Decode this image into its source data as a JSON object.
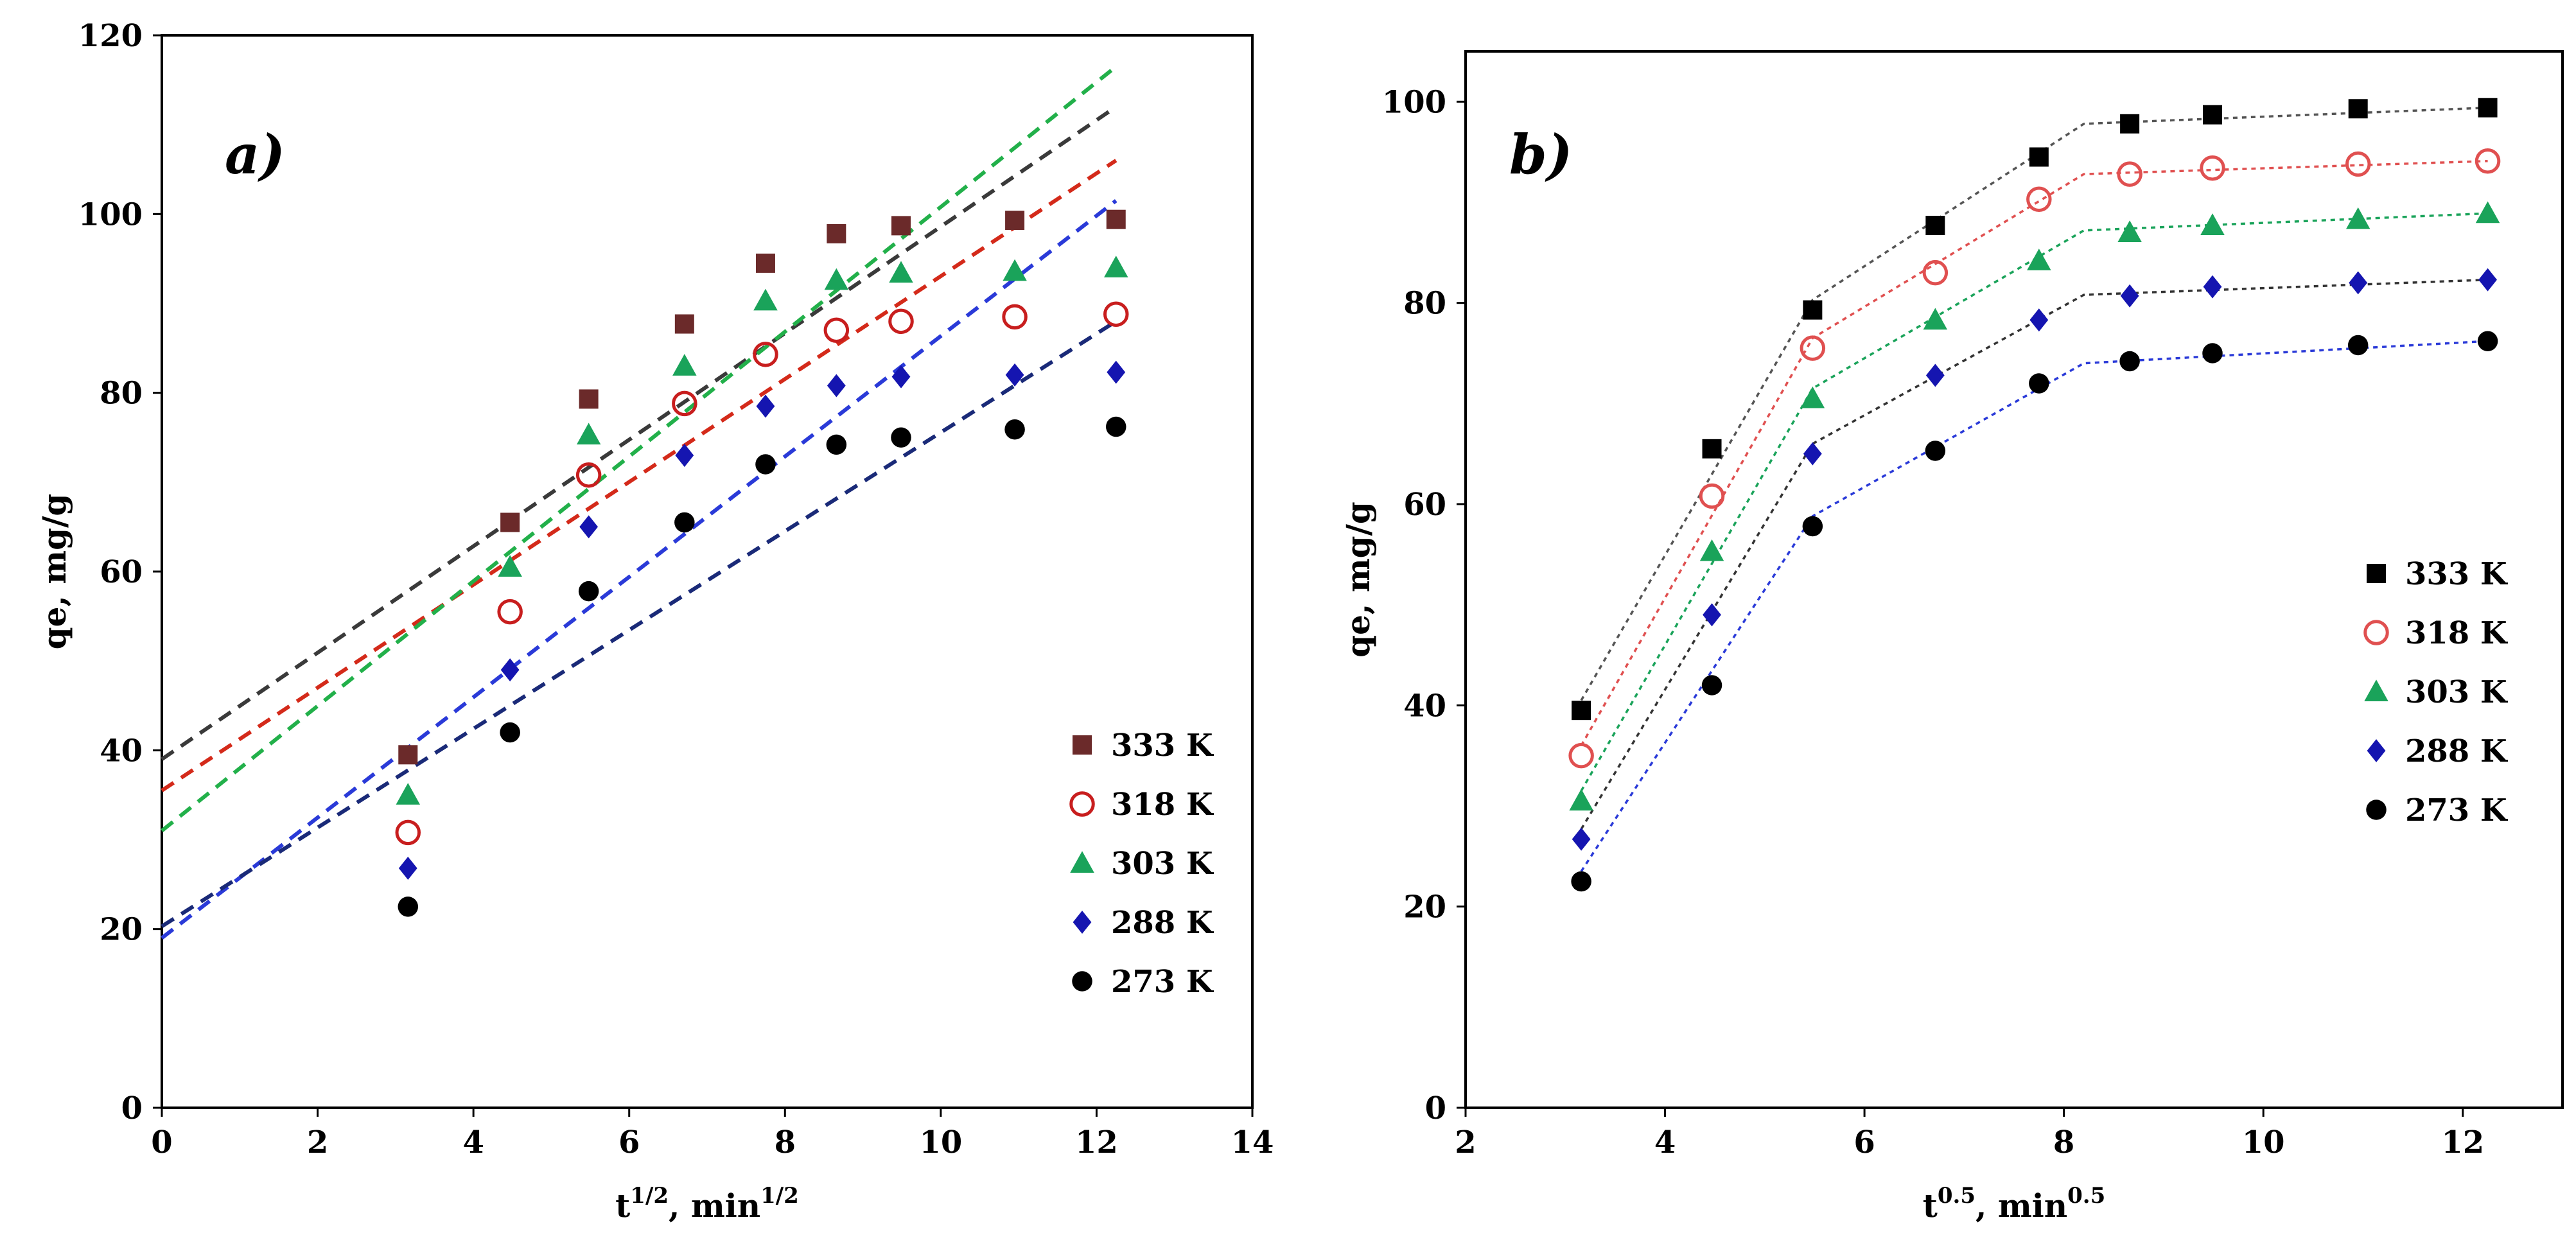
{
  "chart_data": [
    {
      "type": "scatter",
      "panel_label": "a)",
      "xlabel": "t",
      "xlabel_exp": "1/2",
      "xlabel_tail": ", min",
      "xlabel_tail_exp": "1/2",
      "ylabel": "qe, mg/g",
      "xlim": [
        0,
        14
      ],
      "ylim": [
        0,
        120
      ],
      "xticks": [
        "0",
        "2",
        "4",
        "6",
        "8",
        "10",
        "12",
        "14"
      ],
      "yticks": [
        "0",
        "20",
        "40",
        "60",
        "80",
        "100",
        "120"
      ],
      "grid": false,
      "legend": "bottom-right",
      "x": [
        3.16,
        4.47,
        5.48,
        6.71,
        7.75,
        8.66,
        9.49,
        10.95,
        12.25
      ],
      "series": [
        {
          "name": "333 K",
          "marker": "square",
          "color": "#6b2a2a",
          "fill": true,
          "values": [
            39.5,
            65.5,
            79.3,
            87.7,
            94.5,
            97.8,
            98.7,
            99.3,
            99.4
          ],
          "fit": {
            "x": [
              0,
              12.25
            ],
            "y": [
              39.0,
              112.0
            ],
            "color": "#3a3a3a"
          }
        },
        {
          "name": "318 K",
          "marker": "circle-open",
          "color": "#c81e1e",
          "fill": false,
          "values": [
            30.8,
            55.5,
            70.8,
            78.8,
            84.3,
            87.0,
            88.0,
            88.5,
            88.8
          ],
          "fit": {
            "x": [
              0,
              12.25
            ],
            "y": [
              35.5,
              106.0
            ],
            "color": "#d42a1a"
          }
        },
        {
          "name": "303 K",
          "marker": "triangle",
          "color": "#1aa35a",
          "fill": true,
          "values": [
            35.0,
            60.5,
            75.3,
            83.0,
            90.3,
            92.6,
            93.4,
            93.6,
            94.0
          ],
          "fit": {
            "x": [
              0,
              12.25
            ],
            "y": [
              31.0,
              116.5
            ],
            "color": "#22b04a"
          }
        },
        {
          "name": "288 K",
          "marker": "diamond",
          "color": "#1515b0",
          "fill": true,
          "values": [
            26.8,
            49.0,
            65.0,
            73.0,
            78.5,
            80.8,
            81.8,
            82.0,
            82.3
          ],
          "fit": {
            "x": [
              0,
              12.25
            ],
            "y": [
              19.0,
              101.5
            ],
            "color": "#2a3ad8"
          }
        },
        {
          "name": "273 K",
          "marker": "circle",
          "color": "#000000",
          "fill": true,
          "values": [
            22.5,
            42.0,
            57.8,
            65.5,
            72.0,
            74.2,
            75.0,
            75.9,
            76.2
          ],
          "fit": {
            "x": [
              0,
              12.25
            ],
            "y": [
              20.3,
              88.0
            ],
            "color": "#1a2a78"
          }
        }
      ]
    },
    {
      "type": "line",
      "panel_label": "b)",
      "xlabel": "t",
      "xlabel_exp": "0.5",
      "xlabel_tail": ", min",
      "xlabel_tail_exp": "0.5",
      "ylabel": "qe, mg/g",
      "xlim": [
        2,
        13
      ],
      "ylim": [
        0,
        105
      ],
      "xticks": [
        "2",
        "4",
        "6",
        "8",
        "10",
        "12"
      ],
      "yticks": [
        "0",
        "20",
        "40",
        "60",
        "80",
        "100"
      ],
      "grid": false,
      "legend": "right",
      "x": [
        3.16,
        4.47,
        5.48,
        6.71,
        7.75,
        8.66,
        9.49,
        10.95,
        12.25
      ],
      "series": [
        {
          "name": "333 K",
          "marker": "square",
          "color": "#000000",
          "fill": true,
          "values": [
            39.5,
            65.5,
            79.3,
            87.7,
            94.5,
            97.8,
            98.7,
            99.3,
            99.4
          ],
          "fit": {
            "x": [
              3.16,
              5.48,
              8.2,
              12.25
            ],
            "y": [
              40.5,
              80.3,
              97.8,
              99.4
            ],
            "color": "#555555"
          }
        },
        {
          "name": "318 K",
          "marker": "circle-open",
          "color": "#e05050",
          "fill": false,
          "values": [
            35.0,
            60.8,
            75.5,
            83.0,
            90.3,
            92.8,
            93.4,
            93.8,
            94.1
          ],
          "fit": {
            "x": [
              3.16,
              5.48,
              8.2,
              12.25
            ],
            "y": [
              36.0,
              76.5,
              92.8,
              94.1
            ],
            "color": "#e05050"
          }
        },
        {
          "name": "303 K",
          "marker": "triangle",
          "color": "#1aa35a",
          "fill": true,
          "values": [
            30.5,
            55.3,
            70.5,
            78.3,
            84.2,
            87.0,
            87.7,
            88.3,
            88.9
          ],
          "fit": {
            "x": [
              3.16,
              5.48,
              8.2,
              12.25
            ],
            "y": [
              31.5,
              71.5,
              87.2,
              88.9
            ],
            "color": "#1aa35a"
          }
        },
        {
          "name": "288 K",
          "marker": "diamond",
          "color": "#1515b0",
          "fill": true,
          "values": [
            26.7,
            49.0,
            65.0,
            72.8,
            78.3,
            80.7,
            81.6,
            82.0,
            82.3
          ],
          "fit": {
            "x": [
              3.16,
              5.48,
              8.2,
              12.25
            ],
            "y": [
              27.7,
              66.0,
              80.8,
              82.3
            ],
            "color": "#333333"
          }
        },
        {
          "name": "273 K",
          "marker": "circle",
          "color": "#000000",
          "fill": true,
          "values": [
            22.5,
            42.0,
            57.8,
            65.3,
            72.0,
            74.2,
            75.0,
            75.8,
            76.2
          ],
          "fit": {
            "x": [
              3.16,
              5.48,
              8.2,
              12.25
            ],
            "y": [
              23.5,
              58.8,
              74.0,
              76.2
            ],
            "color": "#2a3ad8"
          }
        }
      ]
    }
  ]
}
